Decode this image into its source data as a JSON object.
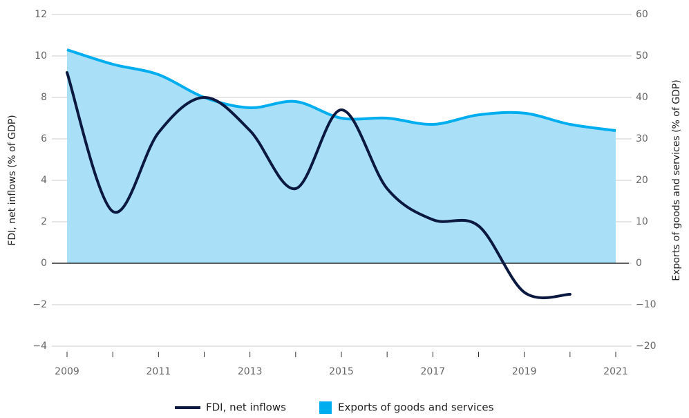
{
  "chart_data": {
    "type": "line-area",
    "x": [
      2009,
      2010,
      2011,
      2012,
      2013,
      2014,
      2015,
      2016,
      2017,
      2018,
      2019,
      2020,
      2021
    ],
    "series": [
      {
        "name": "FDI, net inflows",
        "color": "#0b1840",
        "kind": "line",
        "axis": "y",
        "values": [
          9.2,
          2.5,
          6.3,
          8.0,
          6.4,
          3.6,
          7.4,
          3.6,
          2.1,
          1.8,
          -1.4,
          -1.5,
          null
        ]
      },
      {
        "name": "Exports of goods and services",
        "color": "#00aeef",
        "fill": "#aadff8",
        "kind": "area",
        "axis": "y2",
        "values": [
          51.5,
          48,
          45.5,
          40,
          37.5,
          39,
          35,
          35,
          33.5,
          35.8,
          36.2,
          33.5,
          32
        ]
      }
    ],
    "ylabel": "FDI, net inflows (% of GDP)",
    "y2label": "Exports of goods and services (% of GDP)",
    "xlim": [
      2009,
      2021
    ],
    "xticks": [
      2009,
      2011,
      2013,
      2015,
      2017,
      2019,
      2021
    ],
    "xminorticks": [
      2010,
      2012,
      2014,
      2016,
      2018,
      2020
    ],
    "ylim": [
      -4,
      12
    ],
    "yticks": [
      {
        "value": -4,
        "label": "−4"
      },
      {
        "value": -2,
        "label": "−2"
      },
      0,
      2,
      4,
      6,
      8,
      10,
      12
    ],
    "y2lim": [
      -20,
      60
    ],
    "y2ticks": [
      {
        "value": -20,
        "label": "−20"
      },
      {
        "value": -10,
        "label": "−10"
      },
      0,
      10,
      20,
      30,
      40,
      50,
      60
    ],
    "grid": true,
    "legend": "bottom"
  }
}
